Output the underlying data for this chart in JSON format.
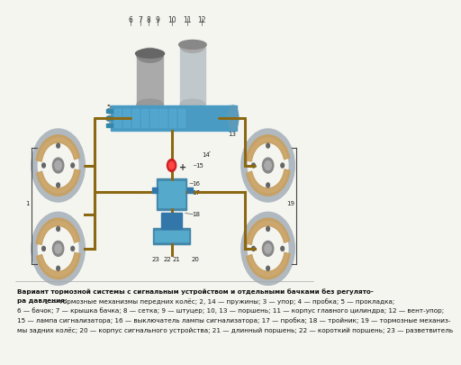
{
  "background_color": "#f5f5f0",
  "image_path": null,
  "title_bold": "Вариант тормозной системы с сигнальным устройством и отдельными бачками без регулято-",
  "title_line2": "ра давления:",
  "caption_text": " 1 — тормозные механизмы передних колёс; 2, 14 — пружины; 3 — упор; 4 — пробка; 5 — прокладка;\n6 — бачок; 7 — крышка бачка; 8 — сетка; 9 — штуцер; 10, 13 — поршень; 11 — корпус главного цилиндра; 12 — вент-упор;\n15 — лампа сигнализатора; 16 — выключатель лампы сигнализатора; 17 — пробка; 18 — тройник; 19 — тормозные механиз-\nмы задних колёс; 20 — корпус сигнального устройства; 21 — длинный поршень; 22 — короткий поршень; 23 — разветвитель"
}
